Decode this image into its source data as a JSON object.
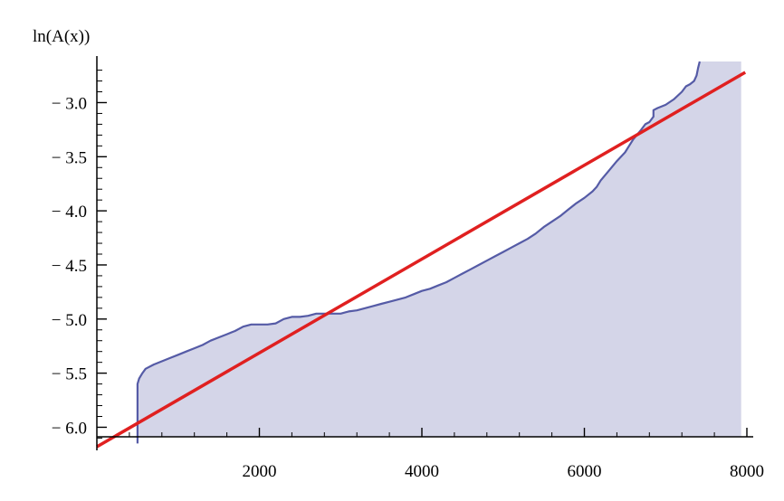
{
  "chart_data": {
    "type": "line",
    "title": "",
    "ylabel": "ln(A(x))",
    "xlabel": "",
    "xlim": [
      0,
      8000
    ],
    "ylim": [
      -6.18,
      -2.62
    ],
    "x_ticks": [
      2000,
      4000,
      6000,
      8000
    ],
    "x_tick_labels": [
      "2000",
      "4000",
      "6000",
      "8000"
    ],
    "x_minor_step": 400,
    "y_ticks": [
      -6.0,
      -5.5,
      -5.0,
      -4.5,
      -4.0,
      -3.5,
      -3.0
    ],
    "y_tick_labels": [
      "− 6.0",
      "− 5.5",
      "− 5.0",
      "− 4.5",
      "− 4.0",
      "− 3.5",
      "− 3.0"
    ],
    "y_minor_step": 0.1,
    "grid": false,
    "legend": "none",
    "series": [
      {
        "style": "line-with-area-fill",
        "color": "#555ba6",
        "fill": "#d4d5e8",
        "x": [
          500,
          500,
          520,
          560,
          600,
          700,
          800,
          900,
          1000,
          1100,
          1200,
          1300,
          1400,
          1500,
          1600,
          1700,
          1800,
          1900,
          2000,
          2100,
          2200,
          2300,
          2400,
          2500,
          2600,
          2700,
          2800,
          2900,
          3000,
          3100,
          3200,
          3300,
          3400,
          3500,
          3600,
          3700,
          3800,
          3900,
          4000,
          4100,
          4200,
          4300,
          4400,
          4500,
          4600,
          4700,
          4800,
          4900,
          5000,
          5100,
          5200,
          5300,
          5400,
          5500,
          5600,
          5700,
          5800,
          5900,
          6000,
          6100,
          6150,
          6200,
          6300,
          6400,
          6500,
          6550,
          6600,
          6700,
          6750,
          6800,
          6850,
          6850,
          6900,
          7000,
          7100,
          7200,
          7250,
          7300,
          7350,
          7380,
          7400,
          7420
        ],
        "y": [
          -6.15,
          -5.6,
          -5.55,
          -5.5,
          -5.46,
          -5.42,
          -5.39,
          -5.36,
          -5.33,
          -5.3,
          -5.27,
          -5.24,
          -5.2,
          -5.17,
          -5.14,
          -5.11,
          -5.07,
          -5.05,
          -5.05,
          -5.05,
          -5.04,
          -5.0,
          -4.98,
          -4.98,
          -4.97,
          -4.95,
          -4.95,
          -4.95,
          -4.95,
          -4.93,
          -4.92,
          -4.9,
          -4.88,
          -4.86,
          -4.84,
          -4.82,
          -4.8,
          -4.77,
          -4.74,
          -4.72,
          -4.69,
          -4.66,
          -4.62,
          -4.58,
          -4.54,
          -4.5,
          -4.46,
          -4.42,
          -4.38,
          -4.34,
          -4.3,
          -4.26,
          -4.21,
          -4.15,
          -4.1,
          -4.05,
          -3.99,
          -3.93,
          -3.88,
          -3.82,
          -3.78,
          -3.72,
          -3.63,
          -3.54,
          -3.46,
          -3.4,
          -3.34,
          -3.25,
          -3.2,
          -3.18,
          -3.13,
          -3.07,
          -3.05,
          -3.02,
          -2.97,
          -2.9,
          -2.85,
          -2.83,
          -2.8,
          -2.75,
          -2.68,
          -2.62
        ]
      },
      {
        "style": "straight-line",
        "color": "#e02020",
        "x": [
          0,
          7980
        ],
        "y": [
          -6.18,
          -2.72
        ]
      }
    ]
  }
}
